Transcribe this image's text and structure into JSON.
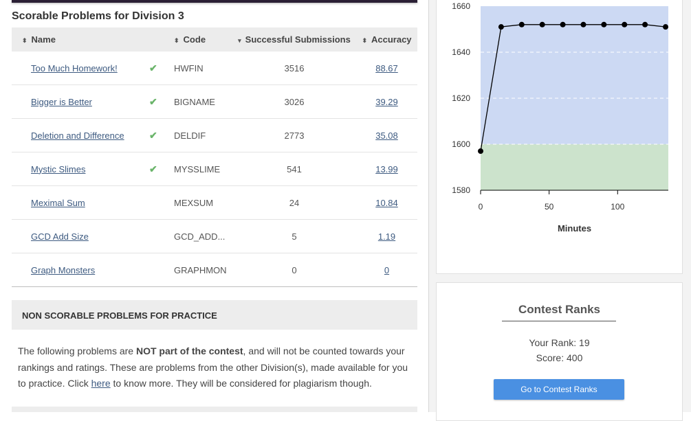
{
  "scorable": {
    "title": "Scorable Problems for Division 3",
    "columns": {
      "name": "Name",
      "code": "Code",
      "successful": "Successful Submissions",
      "accuracy": "Accuracy"
    },
    "sort_icons": {
      "name": "⬍",
      "code": "⬍",
      "successful": "▾",
      "accuracy": "⬍"
    },
    "check_glyph": "✔",
    "rows": [
      {
        "name": "Too Much Homework!",
        "solved": true,
        "code": "HWFIN",
        "successful": "3516",
        "accuracy": "88.67"
      },
      {
        "name": "Bigger is Better",
        "solved": true,
        "code": "BIGNAME",
        "successful": "3026",
        "accuracy": "39.29"
      },
      {
        "name": "Deletion and Difference",
        "solved": true,
        "code": "DELDIF",
        "successful": "2773",
        "accuracy": "35.08"
      },
      {
        "name": "Mystic Slimes",
        "solved": true,
        "code": "MYSSLIME",
        "successful": "541",
        "accuracy": "13.99"
      },
      {
        "name": "Meximal Sum",
        "solved": false,
        "code": "MEXSUM",
        "successful": "24",
        "accuracy": "10.84"
      },
      {
        "name": "GCD Add Size",
        "solved": false,
        "code": "GCD_ADD...",
        "successful": "5",
        "accuracy": "1.19"
      },
      {
        "name": "Graph Monsters",
        "solved": false,
        "code": "GRAPHMON",
        "successful": "0",
        "accuracy": "0"
      }
    ]
  },
  "non_scorable": {
    "title": "NON SCORABLE PROBLEMS FOR PRACTICE",
    "text_1": "The following problems are ",
    "text_bold": "NOT part of the contest",
    "text_2": ", and will not be counted towards your rankings and ratings. These are problems from the other Division(s), made available for you to practice. Click ",
    "link": "here",
    "text_3": " to know more. They will be considered for plagiarism though."
  },
  "chart_data": {
    "type": "line",
    "x": [
      0,
      15,
      30,
      45,
      60,
      75,
      90,
      105,
      120,
      135
    ],
    "y": [
      1597,
      1651,
      1652,
      1652,
      1652,
      1652,
      1652,
      1652,
      1652,
      1651
    ],
    "xlabel": "Minutes",
    "ylabel": "",
    "xlim": [
      0,
      137
    ],
    "ylim": [
      1580,
      1660
    ],
    "xticks": [
      0,
      50,
      100
    ],
    "yticks": [
      1580,
      1600,
      1620,
      1640,
      1660
    ],
    "bands": [
      {
        "from": 1580,
        "to": 1600,
        "color": "#cce3cc"
      },
      {
        "from": 1600,
        "to": 1660,
        "color": "#ccd9f3"
      }
    ],
    "grid": true,
    "line_color": "#000000"
  },
  "contest_ranks": {
    "title": "Contest Ranks",
    "your_rank": "Your Rank: 19",
    "score": "Score: 400",
    "button": "Go to Contest Ranks"
  }
}
